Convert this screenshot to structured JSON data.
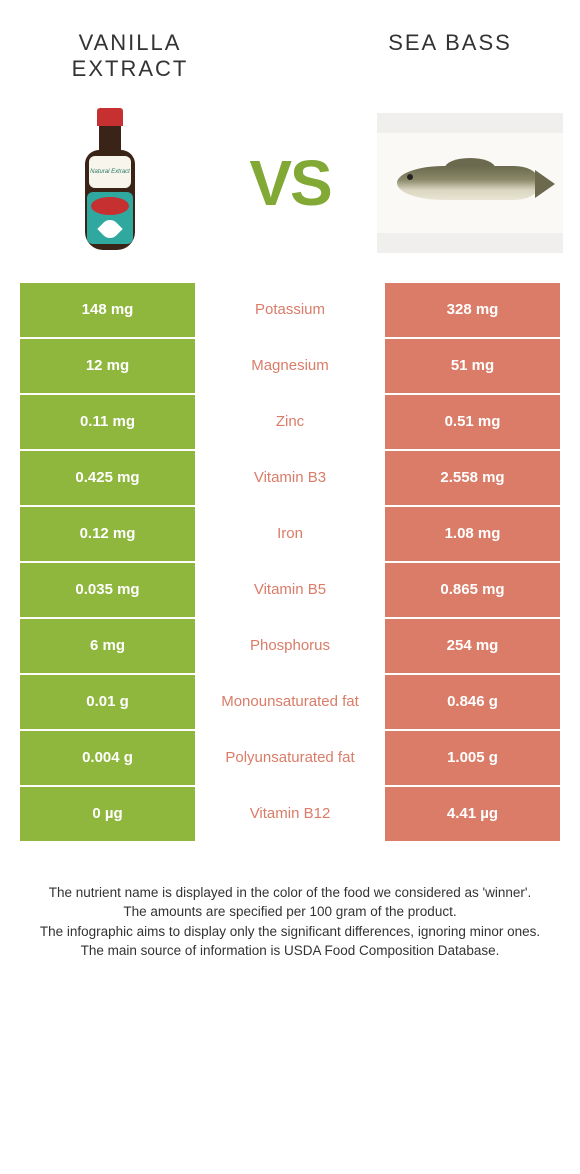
{
  "title_left": "VANILLA EXTRACT",
  "title_right": "SEA BASS",
  "vs_text": "VS",
  "colors": {
    "left_bar": "#8fb73e",
    "right_bar": "#da7c68",
    "label_left_text": "#8fb73e",
    "label_right_text": "#da7c68",
    "background": "#ffffff"
  },
  "rows": [
    {
      "left": "148 mg",
      "label": "Potassium",
      "right": "328 mg",
      "winner": "right"
    },
    {
      "left": "12 mg",
      "label": "Magnesium",
      "right": "51 mg",
      "winner": "right"
    },
    {
      "left": "0.11 mg",
      "label": "Zinc",
      "right": "0.51 mg",
      "winner": "right"
    },
    {
      "left": "0.425 mg",
      "label": "Vitamin B3",
      "right": "2.558 mg",
      "winner": "right"
    },
    {
      "left": "0.12 mg",
      "label": "Iron",
      "right": "1.08 mg",
      "winner": "right"
    },
    {
      "left": "0.035 mg",
      "label": "Vitamin B5",
      "right": "0.865 mg",
      "winner": "right"
    },
    {
      "left": "6 mg",
      "label": "Phosphorus",
      "right": "254 mg",
      "winner": "right"
    },
    {
      "left": "0.01 g",
      "label": "Monounsaturated fat",
      "right": "0.846 g",
      "winner": "right"
    },
    {
      "left": "0.004 g",
      "label": "Polyunsaturated fat",
      "right": "1.005 g",
      "winner": "right"
    },
    {
      "left": "0 µg",
      "label": "Vitamin B12",
      "right": "4.41 µg",
      "winner": "right"
    }
  ],
  "footer_lines": [
    "The nutrient name is displayed in the color of the food we considered as 'winner'.",
    "The amounts are specified per 100 gram of the product.",
    "The infographic aims to display only the significant differences, ignoring minor ones.",
    "The main source of information is USDA Food Composition Database."
  ]
}
